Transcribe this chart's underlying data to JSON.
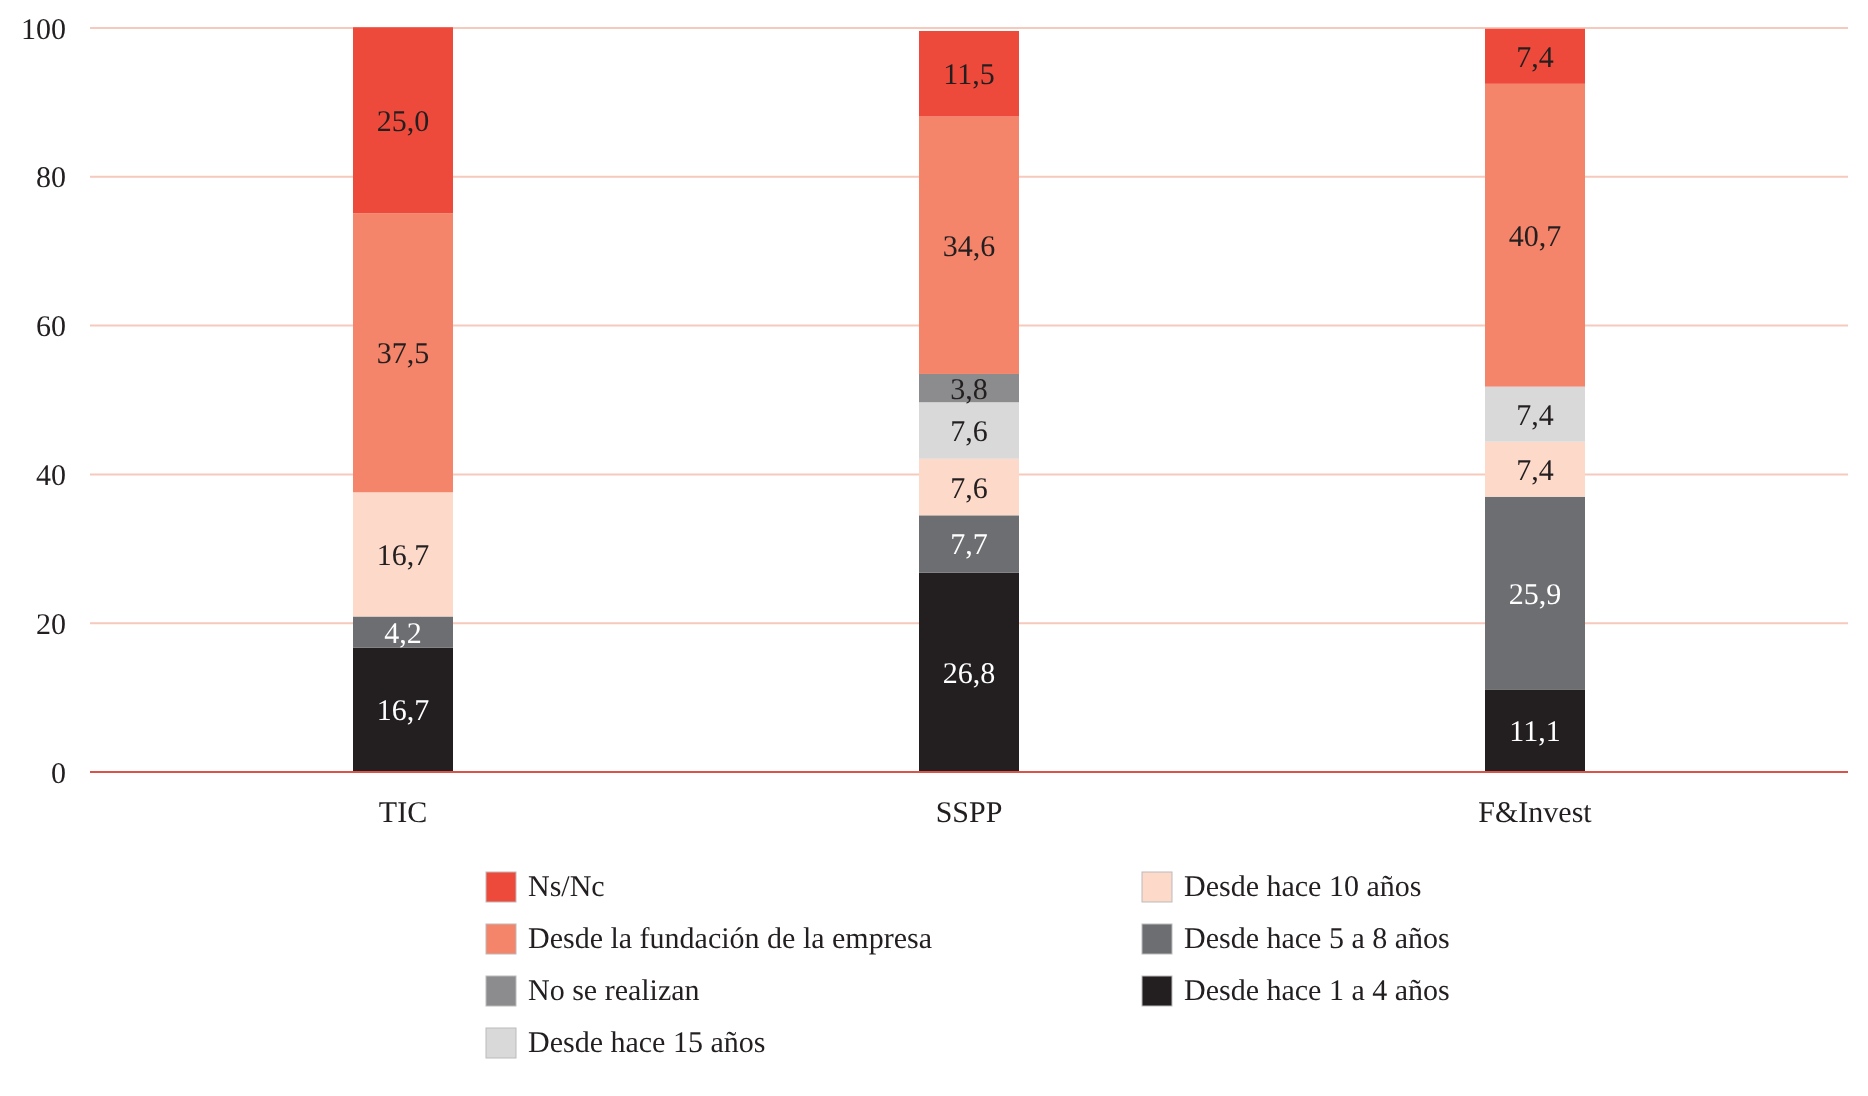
{
  "chart_data": {
    "type": "bar",
    "stacked": true,
    "categories": [
      "TIC",
      "SSPP",
      "F&Invest"
    ],
    "ylim": [
      0,
      100
    ],
    "yticks": [
      0,
      20,
      40,
      60,
      80,
      100
    ],
    "grid": "y",
    "legend": "bottom",
    "series": [
      {
        "name": "Desde hace 1 a 4 años",
        "color": "#231f20",
        "values": [
          16.7,
          26.8,
          11.1
        ],
        "value_labels": [
          "16,7",
          "26,8",
          "11,1"
        ]
      },
      {
        "name": "Desde hace 5 a 8 años",
        "color": "#6d6e71",
        "values": [
          4.2,
          7.7,
          25.9
        ],
        "value_labels": [
          "4,2",
          "7,7",
          "25,9"
        ]
      },
      {
        "name": "Desde hace 10 años",
        "color": "#fcd9c9",
        "values": [
          16.7,
          7.6,
          7.4
        ],
        "value_labels": [
          "16,7",
          "7,6",
          "7,4"
        ]
      },
      {
        "name": "Desde hace 15 años",
        "color": "#d9d9da",
        "values": [
          null,
          7.6,
          7.4
        ],
        "value_labels": [
          null,
          "7,6",
          "7,4"
        ]
      },
      {
        "name": "No se realizan",
        "color": "#8c8c8e",
        "values": [
          null,
          3.8,
          null
        ],
        "value_labels": [
          null,
          "3,8",
          null
        ]
      },
      {
        "name": "Desde la fundación de la empresa",
        "color": "#f4846a",
        "values": [
          37.5,
          34.6,
          40.7
        ],
        "value_labels": [
          "37,5",
          "34,6",
          "40,7"
        ]
      },
      {
        "name": "Ns/Nc",
        "color": "#ee4a3b",
        "values": [
          25.0,
          11.5,
          7.4
        ],
        "value_labels": [
          "25,0",
          "11,5",
          "7,4"
        ]
      }
    ]
  }
}
